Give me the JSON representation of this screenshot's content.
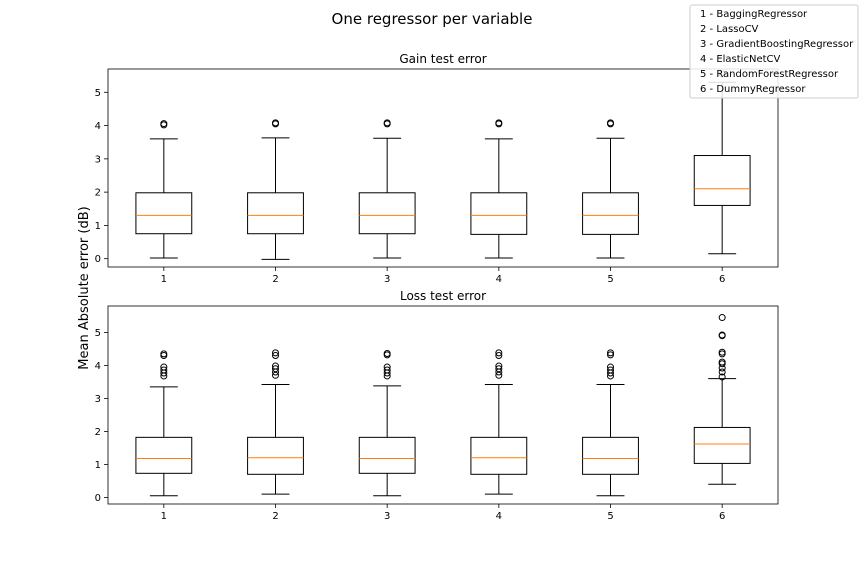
{
  "chart_data": {
    "type": "boxplot",
    "title": "One regressor per variable",
    "ylabel": "Mean Absolute error (dB)",
    "legend": {
      "placement": "top-right",
      "entries": [
        "1 - BaggingRegressor",
        "2 - LassoCV",
        "3 - GradientBoostingRegressor",
        "4 - ElasticNetCV",
        "5 - RandomForestRegressor",
        "6 - DummyRegressor"
      ]
    },
    "subplots": [
      {
        "title": "Gain test error",
        "categories": [
          "1",
          "2",
          "3",
          "4",
          "5",
          "6"
        ],
        "ylim": [
          -0.25,
          5.7
        ],
        "yticks": [
          0,
          1,
          2,
          3,
          4,
          5
        ],
        "boxes": [
          {
            "whislo": 0.02,
            "q1": 0.75,
            "med": 1.3,
            "q3": 1.98,
            "whishi": 3.6,
            "fliers": [
              4.02,
              4.06
            ]
          },
          {
            "whislo": -0.02,
            "q1": 0.75,
            "med": 1.3,
            "q3": 1.98,
            "whishi": 3.63,
            "fliers": [
              4.05,
              4.08
            ]
          },
          {
            "whislo": 0.02,
            "q1": 0.75,
            "med": 1.3,
            "q3": 1.98,
            "whishi": 3.62,
            "fliers": [
              4.05,
              4.08
            ]
          },
          {
            "whislo": 0.02,
            "q1": 0.73,
            "med": 1.3,
            "q3": 1.98,
            "whishi": 3.6,
            "fliers": [
              4.05,
              4.08
            ]
          },
          {
            "whislo": 0.02,
            "q1": 0.73,
            "med": 1.3,
            "q3": 1.98,
            "whishi": 3.62,
            "fliers": [
              4.05,
              4.08
            ]
          },
          {
            "whislo": 0.15,
            "q1": 1.6,
            "med": 2.1,
            "q3": 3.1,
            "whishi": 5.3,
            "fliers": [
              5.55
            ]
          }
        ]
      },
      {
        "title": "Loss test error",
        "categories": [
          "1",
          "2",
          "3",
          "4",
          "5",
          "6"
        ],
        "ylim": [
          -0.2,
          5.8
        ],
        "yticks": [
          0,
          1,
          2,
          3,
          4,
          5
        ],
        "boxes": [
          {
            "whislo": 0.05,
            "q1": 0.73,
            "med": 1.18,
            "q3": 1.82,
            "whishi": 3.35,
            "fliers": [
              3.68,
              3.77,
              3.86,
              3.95,
              4.3,
              4.35
            ]
          },
          {
            "whislo": 0.1,
            "q1": 0.7,
            "med": 1.2,
            "q3": 1.82,
            "whishi": 3.42,
            "fliers": [
              3.7,
              3.8,
              3.9,
              3.98,
              4.3,
              4.38
            ]
          },
          {
            "whislo": 0.05,
            "q1": 0.73,
            "med": 1.18,
            "q3": 1.82,
            "whishi": 3.38,
            "fliers": [
              3.68,
              3.77,
              3.86,
              3.95,
              4.32,
              4.36
            ]
          },
          {
            "whislo": 0.1,
            "q1": 0.7,
            "med": 1.2,
            "q3": 1.82,
            "whishi": 3.42,
            "fliers": [
              3.7,
              3.8,
              3.9,
              3.98,
              4.3,
              4.38
            ]
          },
          {
            "whislo": 0.05,
            "q1": 0.7,
            "med": 1.18,
            "q3": 1.82,
            "whishi": 3.42,
            "fliers": [
              3.68,
              3.77,
              3.86,
              3.95,
              4.32,
              4.38
            ]
          },
          {
            "whislo": 0.4,
            "q1": 1.03,
            "med": 1.62,
            "q3": 2.12,
            "whishi": 3.6,
            "fliers": [
              3.65,
              3.8,
              3.92,
              4.05,
              4.1,
              4.35,
              4.4,
              4.9,
              4.92,
              5.45
            ]
          }
        ]
      }
    ]
  },
  "colors": {
    "box": "#000000",
    "median": "#ff7f0e",
    "legend_border": "#cccccc",
    "background": "#ffffff"
  }
}
